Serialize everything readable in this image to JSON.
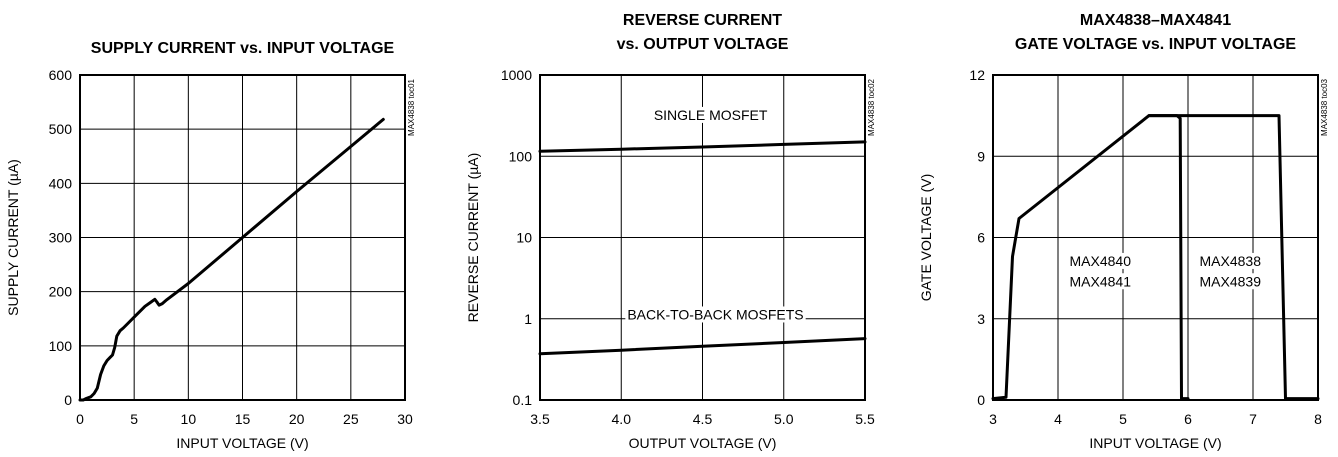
{
  "chart_data": [
    {
      "type": "line",
      "title": [
        "SUPPLY CURRENT vs. INPUT VOLTAGE"
      ],
      "xlabel": "INPUT VOLTAGE (V)",
      "ylabel": "SUPPLY CURRENT (µA)",
      "xlim": [
        0,
        30
      ],
      "ylim": [
        0,
        600
      ],
      "xticks": [
        0,
        5,
        10,
        15,
        20,
        25,
        30
      ],
      "yticks": [
        0,
        100,
        200,
        300,
        400,
        500,
        600
      ],
      "xtick_labels": [
        "0",
        "5",
        "10",
        "15",
        "20",
        "25",
        "30"
      ],
      "ytick_labels": [
        "0",
        "100",
        "200",
        "300",
        "400",
        "500",
        "600"
      ],
      "grid": true,
      "watermark": "MAX4838 toc01",
      "series": [
        {
          "x": [
            0,
            0.3,
            0.6,
            1.0,
            1.3,
            1.6,
            1.9,
            2.2,
            2.5,
            2.8,
            3.0,
            3.2,
            3.4,
            3.7,
            4.0,
            4.5,
            5,
            5.5,
            6,
            6.5,
            6.9,
            7.1,
            7.3,
            7.6,
            8,
            10,
            15,
            20,
            25,
            28
          ],
          "y": [
            0,
            0,
            3,
            6,
            12,
            22,
            47,
            63,
            73,
            79,
            83,
            97,
            118,
            128,
            133,
            143,
            153,
            163,
            173,
            180,
            186,
            181,
            175,
            178,
            185,
            215,
            300,
            385,
            468,
            518
          ]
        }
      ],
      "annotations": []
    },
    {
      "type": "line",
      "title": [
        "REVERSE CURRENT",
        "vs. OUTPUT VOLTAGE"
      ],
      "xlabel": "OUTPUT VOLTAGE (V)",
      "ylabel": "REVERSE CURRENT (µA)",
      "xlim": [
        3.5,
        5.5
      ],
      "ylim": [
        0.1,
        1000
      ],
      "yscale": "log",
      "xticks": [
        3.5,
        4.0,
        4.5,
        5.0,
        5.5
      ],
      "yticks": [
        0.1,
        1,
        10,
        100,
        1000
      ],
      "xtick_labels": [
        "3.5",
        "4.0",
        "4.5",
        "5.0",
        "5.5"
      ],
      "ytick_labels": [
        "0.1",
        "1",
        "10",
        "100",
        "1000"
      ],
      "grid": true,
      "watermark": "MAX4838 toc02",
      "series": [
        {
          "name": "SINGLE MOSFET",
          "x": [
            3.5,
            4.0,
            4.5,
            5.0,
            5.5
          ],
          "y": [
            115,
            122,
            130,
            140,
            150
          ]
        },
        {
          "name": "BACK-TO-BACK MOSFETS",
          "x": [
            3.5,
            4.0,
            4.5,
            5.0,
            5.5
          ],
          "y": [
            0.37,
            0.41,
            0.46,
            0.51,
            0.57
          ]
        }
      ],
      "annotations": [
        {
          "text": "SINGLE MOSFET",
          "x": 4.55,
          "y": 280
        },
        {
          "text": "BACK-TO-BACK MOSFETS",
          "x": 4.58,
          "y": 0.98
        }
      ]
    },
    {
      "type": "line",
      "title": [
        "MAX4838–MAX4841",
        "GATE VOLTAGE vs. INPUT VOLTAGE"
      ],
      "xlabel": "INPUT VOLTAGE (V)",
      "ylabel": "GATE VOLTAGE (V)",
      "xlim": [
        3,
        8
      ],
      "ylim": [
        0,
        12
      ],
      "xticks": [
        3,
        4,
        5,
        6,
        7,
        8
      ],
      "yticks": [
        0,
        3,
        6,
        9,
        12
      ],
      "xtick_labels": [
        "3",
        "4",
        "5",
        "6",
        "7",
        "8"
      ],
      "ytick_labels": [
        "0",
        "3",
        "6",
        "9",
        "12"
      ],
      "grid": true,
      "watermark": "MAX4838 toc03",
      "series": [
        {
          "name": "MAX4840 MAX4841",
          "x": [
            3.0,
            3.2,
            3.3,
            3.4,
            5.4,
            5.83,
            5.88,
            5.9,
            6.0
          ],
          "y": [
            0.05,
            0.1,
            5.3,
            6.7,
            10.5,
            10.5,
            10.4,
            0.05,
            0.05
          ]
        },
        {
          "name": "MAX4838 MAX4839",
          "x": [
            5.4,
            7.4,
            7.5,
            8.0
          ],
          "y": [
            10.5,
            10.5,
            0.05,
            0.05
          ]
        }
      ],
      "annotations": [
        {
          "text": "MAX4840",
          "x": 4.65,
          "y": 4.95
        },
        {
          "text": "MAX4841",
          "x": 4.65,
          "y": 4.2
        },
        {
          "text": "MAX4838",
          "x": 6.65,
          "y": 4.95
        },
        {
          "text": "MAX4839",
          "x": 6.65,
          "y": 4.2
        }
      ]
    }
  ]
}
